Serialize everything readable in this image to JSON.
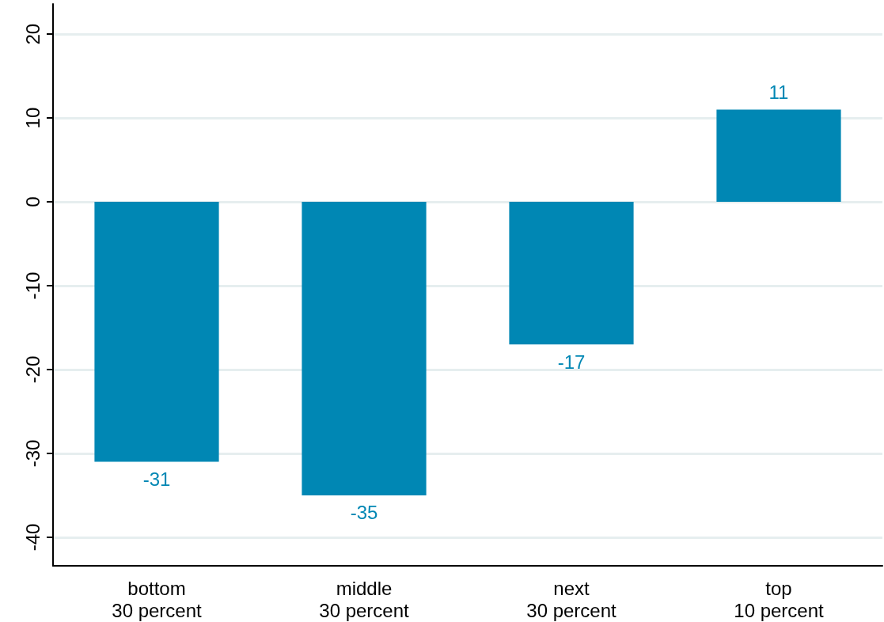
{
  "chart_data": {
    "type": "bar",
    "categories": [
      "bottom\n30 percent",
      "middle\n30 percent",
      "next\n30 percent",
      "top\n10 percent"
    ],
    "values": [
      -31,
      -35,
      -17,
      11
    ],
    "color": "#0087b4",
    "data_labels": true,
    "ylim": [
      -43.4,
      23.6
    ],
    "yticks": [
      -40,
      -30,
      -20,
      -10,
      0,
      10,
      20
    ],
    "grid": "y"
  }
}
